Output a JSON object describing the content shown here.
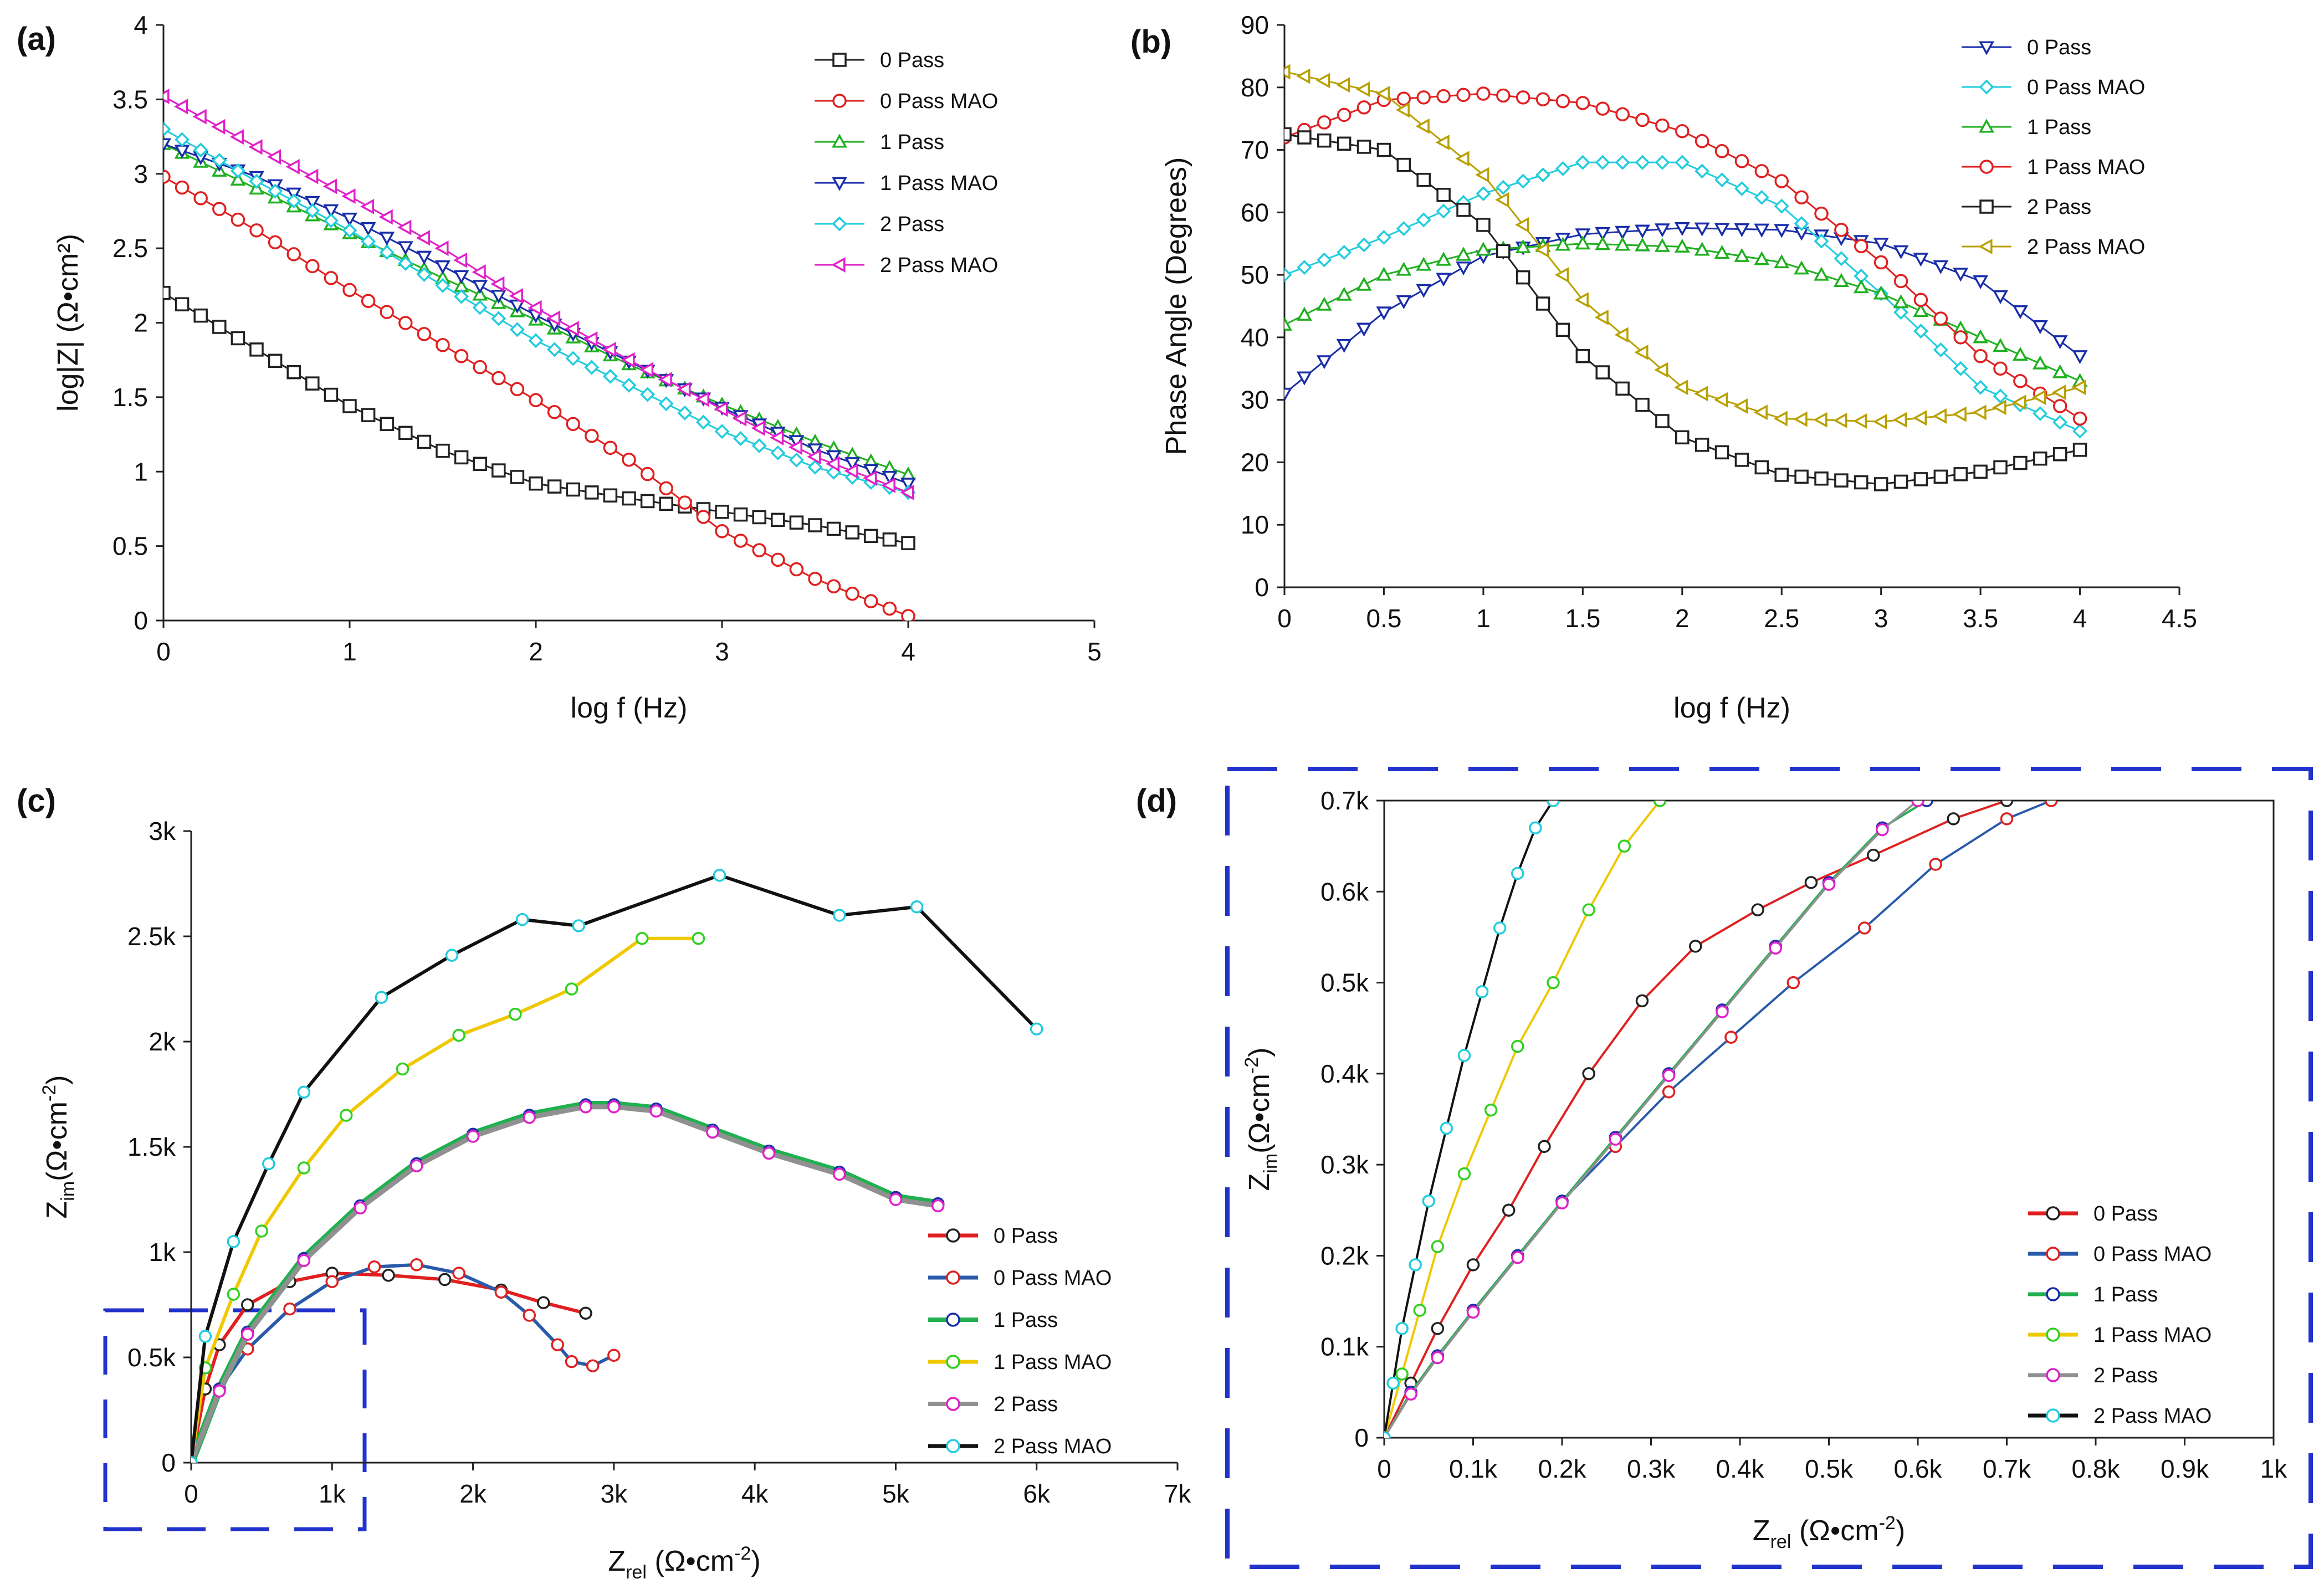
{
  "figure": {
    "panels": [
      "(a)",
      "(b)",
      "(c)",
      "(d)"
    ]
  },
  "chart_data": [
    {
      "id": "a",
      "type": "line",
      "panel_label": "(a)",
      "xlabel": "log f (Hz)",
      "ylabel": "log|Z| (Ω•cm²)",
      "xlim": [
        0,
        5
      ],
      "ylim": [
        0,
        4
      ],
      "xticks": [
        "0",
        "1",
        "2",
        "3",
        "4",
        "5"
      ],
      "yticks": [
        "0",
        "0.5",
        "1",
        "1.5",
        "2",
        "2.5",
        "3",
        "3.5",
        "4"
      ],
      "legend_position": "top-right",
      "series": [
        {
          "name": "0 Pass",
          "color": "#222222",
          "marker": "square",
          "x": [
            0,
            0.5,
            1,
            1.5,
            2,
            2.5,
            3,
            3.5,
            4
          ],
          "y": [
            2.2,
            1.82,
            1.44,
            1.14,
            0.92,
            0.82,
            0.73,
            0.64,
            0.52
          ]
        },
        {
          "name": "0 Pass MAO",
          "color": "#e02020",
          "marker": "circle",
          "x": [
            0,
            0.5,
            1,
            1.5,
            2,
            2.5,
            3,
            3.5,
            4
          ],
          "y": [
            2.98,
            2.62,
            2.22,
            1.85,
            1.48,
            1.08,
            0.6,
            0.28,
            0.03
          ]
        },
        {
          "name": "1 Pass",
          "color": "#20b020",
          "marker": "triangle-up",
          "x": [
            0,
            0.5,
            1,
            1.5,
            2,
            2.5,
            3,
            3.5,
            4
          ],
          "y": [
            3.2,
            2.9,
            2.6,
            2.3,
            2.02,
            1.72,
            1.45,
            1.2,
            0.98
          ]
        },
        {
          "name": "1 Pass MAO",
          "color": "#1a2eaa",
          "marker": "triangle-down",
          "x": [
            0,
            0.5,
            1,
            1.5,
            2,
            2.5,
            3,
            3.5,
            4
          ],
          "y": [
            3.2,
            2.98,
            2.7,
            2.38,
            2.05,
            1.74,
            1.43,
            1.15,
            0.92
          ]
        },
        {
          "name": "2 Pass",
          "color": "#22ccdd",
          "marker": "diamond",
          "x": [
            0,
            0.5,
            1,
            1.5,
            2,
            2.5,
            3,
            3.5,
            4
          ],
          "y": [
            3.3,
            2.95,
            2.62,
            2.25,
            1.88,
            1.58,
            1.27,
            1.03,
            0.86
          ]
        },
        {
          "name": "2 Pass MAO",
          "color": "#e020c8",
          "marker": "triangle-left",
          "x": [
            0,
            0.5,
            1,
            1.5,
            2,
            2.5,
            3,
            3.5,
            4
          ],
          "y": [
            3.52,
            3.18,
            2.85,
            2.5,
            2.1,
            1.75,
            1.42,
            1.1,
            0.86
          ]
        }
      ]
    },
    {
      "id": "b",
      "type": "line",
      "panel_label": "(b)",
      "xlabel": "log f (Hz)",
      "ylabel": "Phase Angle (Degrees)",
      "xlim": [
        0,
        4.5
      ],
      "ylim": [
        0,
        90
      ],
      "xticks": [
        "0",
        "0.5",
        "1",
        "1.5",
        "2",
        "2.5",
        "3",
        "3.5",
        "4",
        "4.5"
      ],
      "yticks": [
        "0",
        "10",
        "20",
        "30",
        "40",
        "50",
        "60",
        "70",
        "80",
        "90"
      ],
      "legend_position": "top-right",
      "series": [
        {
          "name": "0 Pass",
          "color": "#1a2eaa",
          "marker": "triangle-down",
          "x": [
            0,
            0.5,
            1,
            1.5,
            2,
            2.5,
            3,
            3.5,
            4
          ],
          "y": [
            31,
            44,
            53,
            56.5,
            57.5,
            57.2,
            55,
            49,
            37
          ]
        },
        {
          "name": "0 Pass MAO",
          "color": "#22ccdd",
          "marker": "diamond",
          "x": [
            0,
            0.5,
            1,
            1.5,
            2,
            2.5,
            3,
            3.5,
            4
          ],
          "y": [
            50,
            56,
            63,
            68,
            68,
            61,
            47,
            32,
            25
          ]
        },
        {
          "name": "1 Pass",
          "color": "#20b020",
          "marker": "triangle-up",
          "x": [
            0,
            0.5,
            1,
            1.5,
            2,
            2.5,
            3,
            3.5,
            4
          ],
          "y": [
            42,
            50,
            54,
            55,
            54.5,
            52,
            47,
            40,
            33
          ]
        },
        {
          "name": "1 Pass MAO",
          "color": "#e02020",
          "marker": "circle",
          "x": [
            0,
            0.5,
            1,
            1.5,
            2,
            2.5,
            3,
            3.5,
            4
          ],
          "y": [
            72,
            78,
            79,
            77.5,
            73,
            65,
            52,
            37,
            27
          ]
        },
        {
          "name": "2 Pass",
          "color": "#222222",
          "marker": "square",
          "x": [
            0,
            0.5,
            1,
            1.5,
            2,
            2.5,
            3,
            3.5,
            4
          ],
          "y": [
            72.5,
            70,
            58,
            37,
            24,
            18,
            16.5,
            18.5,
            22
          ]
        },
        {
          "name": "2 Pass MAO",
          "color": "#b8a000",
          "marker": "triangle-left",
          "x": [
            0,
            0.5,
            1,
            1.5,
            2,
            2.5,
            3,
            3.5,
            4
          ],
          "y": [
            82.5,
            79,
            66,
            46,
            32,
            27,
            26.5,
            28,
            32
          ]
        }
      ]
    },
    {
      "id": "c",
      "type": "line",
      "panel_label": "(c)",
      "xlabel": "Zrel (Ω•cm-2)",
      "xlabel_parts": {
        "main": "Z",
        "sub": "rel",
        "unit": " (Ω•cm",
        "sup": "-2",
        "close": ")"
      },
      "ylabel": "Zim(Ω•cm-2)",
      "ylabel_parts": {
        "main": "Z",
        "sub": "im",
        "unit": "(Ω•cm",
        "sup": "-2",
        "close": ")"
      },
      "xlim": [
        0,
        7000
      ],
      "ylim": [
        0,
        3000
      ],
      "xticks": [
        "0",
        "1k",
        "2k",
        "3k",
        "4k",
        "5k",
        "6k",
        "7k"
      ],
      "yticks": [
        "0",
        "0.5k",
        "1k",
        "1.5k",
        "2k",
        "2.5k",
        "3k"
      ],
      "legend_position": "bottom-right",
      "series": [
        {
          "name": "0 Pass",
          "color": "#e02020",
          "marker_color": "#222222",
          "x": [
            0,
            100,
            200,
            400,
            700,
            1000,
            1400,
            1800,
            2200,
            2500,
            2800
          ],
          "y": [
            0,
            350,
            560,
            750,
            860,
            900,
            890,
            870,
            820,
            760,
            710
          ]
        },
        {
          "name": "0 Pass MAO",
          "color": "#2a5aaa",
          "marker_color": "#e02020",
          "x": [
            0,
            200,
            400,
            700,
            1000,
            1300,
            1600,
            1900,
            2200,
            2400,
            2600,
            2700,
            2850,
            3000
          ],
          "y": [
            0,
            350,
            540,
            730,
            860,
            930,
            940,
            900,
            810,
            700,
            560,
            480,
            460,
            510
          ]
        },
        {
          "name": "1 Pass",
          "color": "#20b050",
          "marker_color": "#1a2eaa",
          "x": [
            0,
            200,
            400,
            800,
            1200,
            1600,
            2000,
            2400,
            2800,
            3000,
            3300,
            3700,
            4100,
            4600,
            5000,
            5300
          ],
          "y": [
            0,
            350,
            620,
            970,
            1220,
            1420,
            1560,
            1650,
            1700,
            1700,
            1680,
            1580,
            1480,
            1380,
            1260,
            1230
          ]
        },
        {
          "name": "1 Pass MAO",
          "color": "#f0c800",
          "marker_color": "#30d020",
          "x": [
            0,
            100,
            300,
            500,
            800,
            1100,
            1500,
            1900,
            2300,
            2700,
            3200,
            3600
          ],
          "y": [
            0,
            450,
            800,
            1100,
            1400,
            1650,
            1870,
            2030,
            2130,
            2250,
            2490,
            2490
          ]
        },
        {
          "name": "2 Pass",
          "color": "#909090",
          "marker_color": "#e020c8",
          "x": [
            0,
            200,
            400,
            800,
            1200,
            1600,
            2000,
            2400,
            2800,
            3000,
            3300,
            3700,
            4100,
            4600,
            5000,
            5300
          ],
          "y": [
            0,
            340,
            610,
            960,
            1210,
            1410,
            1550,
            1640,
            1690,
            1690,
            1670,
            1570,
            1470,
            1370,
            1250,
            1220
          ]
        },
        {
          "name": "2 Pass MAO",
          "color": "#111111",
          "marker_color": "#22ccdd",
          "x": [
            0,
            100,
            300,
            550,
            800,
            1350,
            1850,
            2350,
            2750,
            3750,
            4600,
            5150,
            6000
          ],
          "y": [
            0,
            600,
            1050,
            1420,
            1760,
            2210,
            2410,
            2580,
            2550,
            2790,
            2600,
            2640,
            2060
          ]
        }
      ]
    },
    {
      "id": "d",
      "type": "line",
      "panel_label": "(d)",
      "xlabel": "Zrel (Ω•cm-2)",
      "xlabel_parts": {
        "main": "Z",
        "sub": "rel",
        "unit": " (Ω•cm",
        "sup": "-2",
        "close": ")"
      },
      "ylabel": "Zim(Ω•cm-2)",
      "ylabel_parts": {
        "main": "Z",
        "sub": "im",
        "unit": "(Ω•cm",
        "sup": "-2",
        "close": ")"
      },
      "xlim": [
        0,
        1000
      ],
      "ylim": [
        0,
        700
      ],
      "xticks": [
        "0",
        "0.1k",
        "0.2k",
        "0.3k",
        "0.4k",
        "0.5k",
        "0.6k",
        "0.7k",
        "0.8k",
        "0.9k",
        "1k"
      ],
      "yticks": [
        "0",
        "0.1k",
        "0.2k",
        "0.3k",
        "0.4k",
        "0.5k",
        "0.6k",
        "0.7k"
      ],
      "legend_position": "bottom-right",
      "series": [
        {
          "name": "0 Pass",
          "color": "#e02020",
          "marker_color": "#222222",
          "x": [
            0,
            30,
            60,
            100,
            140,
            180,
            230,
            290,
            350,
            420,
            480,
            550,
            640,
            700
          ],
          "y": [
            0,
            60,
            120,
            190,
            250,
            320,
            400,
            480,
            540,
            580,
            610,
            640,
            680,
            700
          ]
        },
        {
          "name": "0 Pass MAO",
          "color": "#2a5aaa",
          "marker_color": "#e02020",
          "x": [
            0,
            30,
            60,
            100,
            150,
            200,
            260,
            320,
            390,
            460,
            540,
            620,
            700,
            750
          ],
          "y": [
            0,
            50,
            90,
            140,
            200,
            260,
            320,
            380,
            440,
            500,
            560,
            630,
            680,
            700
          ]
        },
        {
          "name": "1 Pass",
          "color": "#20b050",
          "marker_color": "#1a2eaa",
          "x": [
            0,
            30,
            60,
            100,
            150,
            200,
            260,
            320,
            380,
            440,
            500,
            560,
            610
          ],
          "y": [
            0,
            50,
            90,
            140,
            200,
            260,
            330,
            400,
            470,
            540,
            610,
            670,
            700
          ]
        },
        {
          "name": "1 Pass MAO",
          "color": "#f0c800",
          "marker_color": "#30d020",
          "x": [
            0,
            20,
            40,
            60,
            90,
            120,
            150,
            190,
            230,
            270,
            310
          ],
          "y": [
            0,
            70,
            140,
            210,
            290,
            360,
            430,
            500,
            580,
            650,
            700
          ]
        },
        {
          "name": "2 Pass",
          "color": "#909090",
          "marker_color": "#e020c8",
          "x": [
            0,
            30,
            60,
            100,
            150,
            200,
            260,
            320,
            380,
            440,
            500,
            560,
            600
          ],
          "y": [
            0,
            48,
            88,
            138,
            198,
            258,
            328,
            398,
            468,
            538,
            608,
            668,
            700
          ]
        },
        {
          "name": "2 Pass MAO",
          "color": "#111111",
          "marker_color": "#22ccdd",
          "x": [
            0,
            10,
            20,
            35,
            50,
            70,
            90,
            110,
            130,
            150,
            170,
            190
          ],
          "y": [
            0,
            60,
            120,
            190,
            260,
            340,
            420,
            490,
            560,
            620,
            670,
            700
          ]
        }
      ]
    }
  ]
}
